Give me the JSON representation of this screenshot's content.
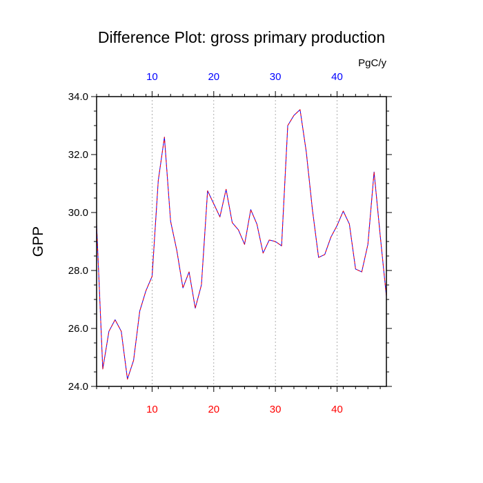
{
  "chart_data": {
    "type": "line",
    "title": "Difference Plot: gross primary production",
    "units": "PgC/y",
    "ylabel": "GPP",
    "xlabel": "",
    "xlim": [
      1,
      48
    ],
    "ylim": [
      24,
      34
    ],
    "yticks": [
      24,
      26,
      28,
      30,
      32,
      34
    ],
    "ytick_labels": [
      "24.0",
      "26.0",
      "28.0",
      "30.0",
      "32.0",
      "34.0"
    ],
    "xticks": [
      10,
      20,
      30,
      40
    ],
    "xtick_labels_bottom": [
      "10",
      "20",
      "30",
      "40"
    ],
    "xtick_labels_top": [
      "10",
      "20",
      "30",
      "40"
    ],
    "grid": "vertical dotted at major x ticks",
    "colors": {
      "bottom_axis_labels": "#ff0000",
      "top_axis_labels": "#0000ff",
      "series_a": "#0000ff",
      "series_b": "#ff0000"
    },
    "x": [
      1,
      2,
      3,
      4,
      5,
      6,
      7,
      8,
      9,
      10,
      11,
      12,
      13,
      14,
      15,
      16,
      17,
      18,
      19,
      20,
      21,
      22,
      23,
      24,
      25,
      26,
      27,
      28,
      29,
      30,
      31,
      32,
      33,
      34,
      35,
      36,
      37,
      38,
      39,
      40,
      41,
      42,
      43,
      44,
      45,
      46,
      47,
      48
    ],
    "series": [
      {
        "values": [
          29.6,
          24.6,
          25.9,
          26.3,
          25.9,
          24.25,
          24.9,
          26.6,
          27.3,
          27.8,
          31.1,
          32.6,
          29.7,
          28.7,
          27.4,
          27.95,
          26.7,
          27.5,
          30.75,
          30.3,
          29.85,
          30.8,
          29.65,
          29.4,
          28.9,
          30.1,
          29.6,
          28.6,
          29.05,
          29.0,
          28.85,
          33.0,
          33.35,
          33.55,
          32.1,
          30.1,
          28.45,
          28.55,
          29.15,
          29.55,
          30.05,
          29.6,
          28.05,
          27.95,
          28.9,
          31.4,
          29.2,
          27.1
        ]
      },
      {
        "values": [
          29.6,
          24.6,
          25.9,
          26.3,
          25.9,
          24.25,
          24.9,
          26.6,
          27.3,
          27.8,
          31.1,
          32.6,
          29.7,
          28.7,
          27.4,
          27.95,
          26.7,
          27.5,
          30.75,
          30.3,
          29.85,
          30.8,
          29.65,
          29.4,
          28.9,
          30.1,
          29.6,
          28.6,
          29.05,
          29.0,
          28.85,
          33.0,
          33.35,
          33.55,
          32.1,
          30.1,
          28.45,
          28.55,
          29.15,
          29.55,
          30.05,
          29.6,
          28.05,
          27.95,
          28.9,
          31.4,
          29.2,
          27.1
        ]
      }
    ]
  }
}
